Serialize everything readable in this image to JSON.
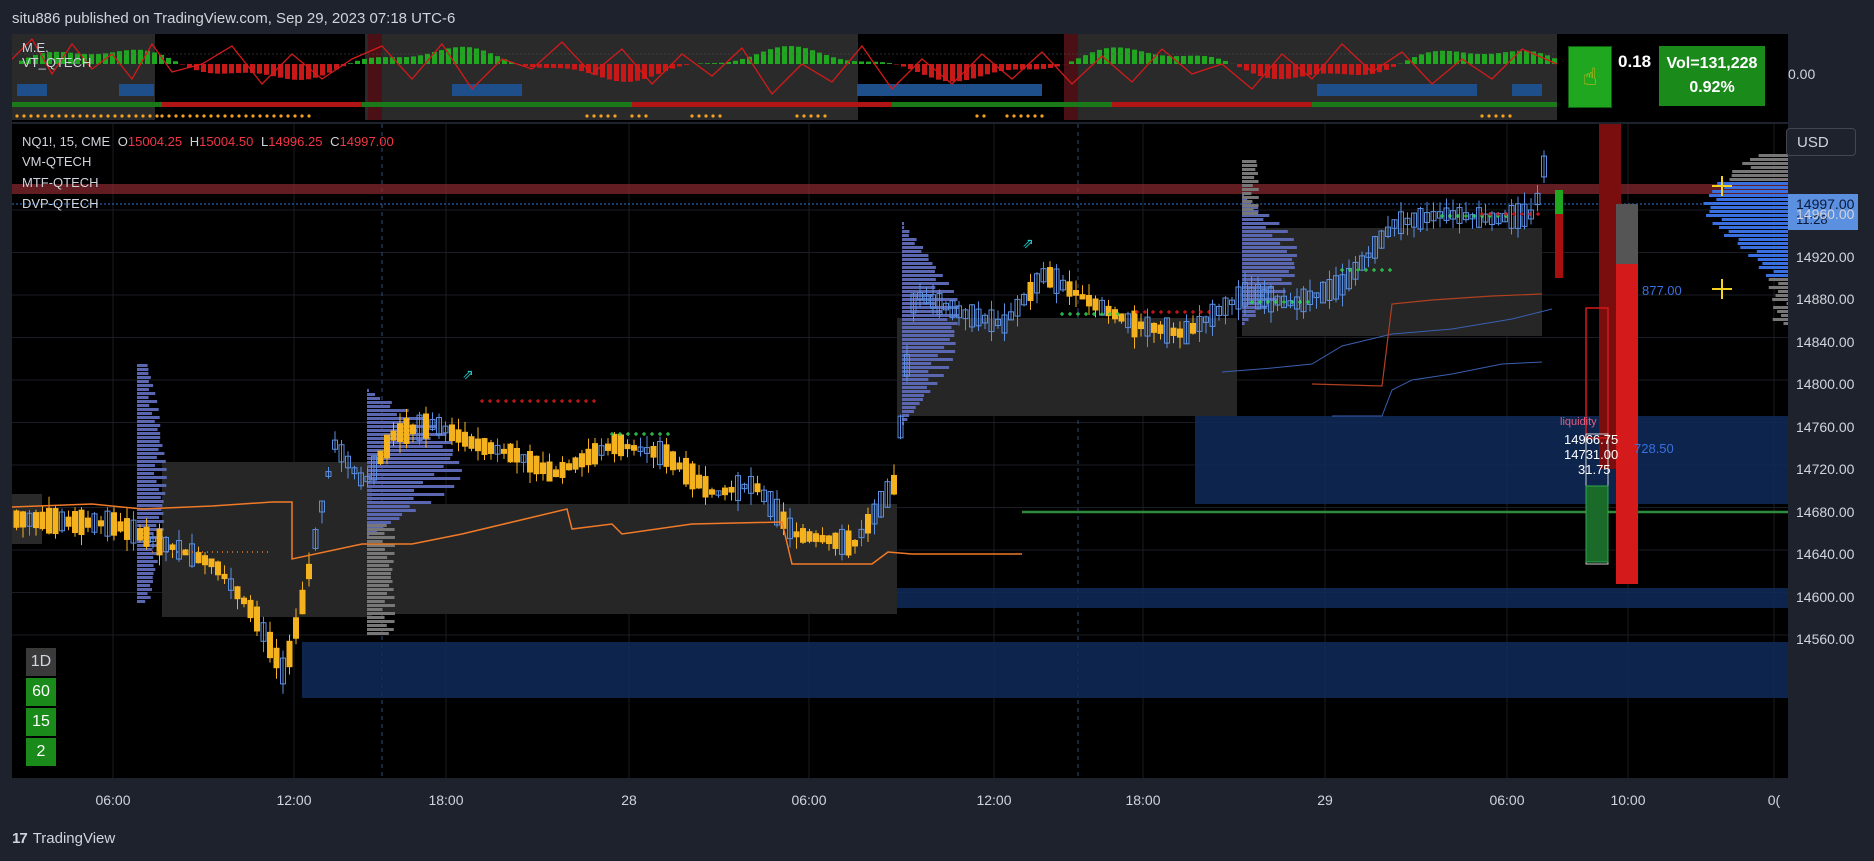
{
  "header": {
    "published": "situ886 published on TradingView.com, Sep 29, 2023 07:18 UTC-6"
  },
  "footer": {
    "logo_text": "17",
    "brand": "TradingView"
  },
  "top_panel": {
    "label_me": "M.E.",
    "label_vt": "VT_QTECH",
    "price_value": "0.00",
    "pct_change": "0.18",
    "vol_label": "Vol=131,228",
    "vol_pct": "0.92%"
  },
  "legend": {
    "symbol": "NQ1!, 15, CME",
    "o_label": "O",
    "o_value": "15004.25",
    "h_label": "H",
    "h_value": "15004.50",
    "l_label": "L",
    "l_value": "14996.25",
    "c_label": "C",
    "c_value": "14997.00",
    "ind1": "VM-QTECH",
    "ind2": "MTF-QTECH",
    "ind3": "DVP-QTECH"
  },
  "currency": "USD",
  "price_axis": {
    "labels": [
      "14960.00",
      "14920.00",
      "14880.00",
      "14840.00",
      "14800.00",
      "14760.00",
      "14720.00",
      "14680.00",
      "14640.00",
      "14600.00",
      "14560.00"
    ],
    "current_price": "14997.00",
    "countdown": "11:28"
  },
  "time_axis": {
    "labels": [
      "06:00",
      "12:00",
      "18:00",
      "28",
      "06:00",
      "12:00",
      "18:00",
      "29",
      "06:00",
      "10:00",
      "0("
    ]
  },
  "timeframes": [
    "1D",
    "60",
    "15",
    "2"
  ],
  "annotations": {
    "liquidity": "liquidity",
    "level_a": "14966.75",
    "level_b": "14731.00",
    "level_diff": "31.75",
    "poc_upper": "877.00",
    "poc_lower": "728.50"
  },
  "colors": {
    "bg": "#000000",
    "panel": "#1e222d",
    "up": "#5b8fe0",
    "down": "#f5b21f",
    "green": "#1fa81f",
    "red": "#d41a1a",
    "orange": "#f07a28"
  }
}
